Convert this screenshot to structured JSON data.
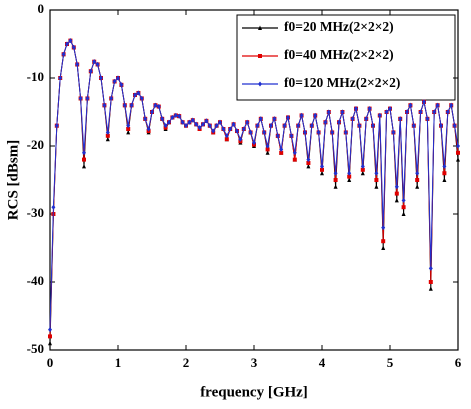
{
  "chart_data": {
    "type": "line",
    "xlabel": "frequency [GHz]",
    "ylabel": "RCS [dBsm]",
    "xlim": [
      0,
      6
    ],
    "ylim": [
      -50,
      0
    ],
    "xticks": [
      0,
      1,
      2,
      3,
      4,
      5,
      6
    ],
    "yticks": [
      -50,
      -40,
      -30,
      -20,
      -10,
      0
    ],
    "legend": "upper right",
    "x": [
      0,
      0.05,
      0.1,
      0.15,
      0.2,
      0.25,
      0.3,
      0.35,
      0.4,
      0.45,
      0.5,
      0.55,
      0.6,
      0.65,
      0.7,
      0.75,
      0.8,
      0.85,
      0.9,
      0.95,
      1.0,
      1.05,
      1.1,
      1.15,
      1.2,
      1.25,
      1.3,
      1.35,
      1.4,
      1.45,
      1.5,
      1.55,
      1.6,
      1.65,
      1.7,
      1.75,
      1.8,
      1.85,
      1.9,
      1.95,
      2.0,
      2.05,
      2.1,
      2.15,
      2.2,
      2.25,
      2.3,
      2.35,
      2.4,
      2.45,
      2.5,
      2.55,
      2.6,
      2.65,
      2.7,
      2.75,
      2.8,
      2.85,
      2.9,
      2.95,
      3.0,
      3.05,
      3.1,
      3.15,
      3.2,
      3.25,
      3.3,
      3.35,
      3.4,
      3.45,
      3.5,
      3.55,
      3.6,
      3.65,
      3.7,
      3.75,
      3.8,
      3.85,
      3.9,
      3.95,
      4.0,
      4.05,
      4.1,
      4.15,
      4.2,
      4.25,
      4.3,
      4.35,
      4.4,
      4.45,
      4.5,
      4.55,
      4.6,
      4.65,
      4.7,
      4.75,
      4.8,
      4.85,
      4.9,
      4.95,
      5.0,
      5.05,
      5.1,
      5.15,
      5.2,
      5.25,
      5.3,
      5.35,
      5.4,
      5.45,
      5.5,
      5.55,
      5.6,
      5.65,
      5.7,
      5.75,
      5.8,
      5.85,
      5.9,
      5.95,
      6.0
    ],
    "series": [
      {
        "name": "f0=20 MHz(2×2×2)",
        "color": "#000000",
        "marker": "triangle",
        "values": [
          -49,
          -30,
          -17,
          -10,
          -6.5,
          -5,
          -4.5,
          -5.5,
          -8,
          -13,
          -23,
          -13,
          -9,
          -7.6,
          -8,
          -10,
          -14,
          -19,
          -13,
          -10.5,
          -10,
          -11,
          -14,
          -18,
          -14,
          -12.5,
          -12.2,
          -13,
          -16,
          -18,
          -15,
          -14,
          -14.2,
          -16,
          -17.5,
          -16.5,
          -15.8,
          -15.5,
          -15.6,
          -16.5,
          -17,
          -16.5,
          -16.2,
          -16.8,
          -17.5,
          -16.8,
          -16.3,
          -17,
          -18,
          -17,
          -16.5,
          -17.5,
          -19,
          -17.5,
          -16.8,
          -17.8,
          -19.5,
          -17.5,
          -16.5,
          -18,
          -20,
          -17,
          -16,
          -18,
          -21,
          -17,
          -16,
          -18.5,
          -21,
          -17,
          -15.8,
          -18.5,
          -22,
          -17,
          -15.5,
          -18,
          -23,
          -17,
          -15.5,
          -18,
          -24,
          -16.5,
          -15,
          -18,
          -26,
          -16.5,
          -15,
          -18,
          -25,
          -16,
          -14.5,
          -17,
          -24,
          -16,
          -14.5,
          -17,
          -26,
          -15.5,
          -35,
          -15,
          -14.5,
          -18,
          -28,
          -16,
          -30,
          -15,
          -14,
          -17,
          -26,
          -15,
          -13.5,
          -16,
          -41,
          -15,
          -14,
          -17,
          -25,
          -15,
          -14,
          -17,
          -22
        ]
      },
      {
        "name": "f0=40 MHz(2×2×2)",
        "color": "#e00000",
        "marker": "square",
        "values": [
          -48,
          -30,
          -17,
          -10,
          -6.5,
          -5,
          -4.5,
          -5.5,
          -8,
          -13,
          -22,
          -13,
          -9,
          -7.6,
          -8,
          -10,
          -14,
          -18.5,
          -13,
          -10.5,
          -10,
          -11,
          -14,
          -17.5,
          -14,
          -12.5,
          -12.2,
          -13,
          -16,
          -17.8,
          -15,
          -14,
          -14.2,
          -16,
          -17.3,
          -16.5,
          -15.8,
          -15.5,
          -15.6,
          -16.5,
          -17,
          -16.5,
          -16.2,
          -16.8,
          -17.5,
          -16.8,
          -16.3,
          -17,
          -18,
          -17,
          -16.5,
          -17.5,
          -19,
          -17.5,
          -16.8,
          -17.8,
          -19.3,
          -17.5,
          -16.5,
          -18,
          -19.8,
          -17,
          -16,
          -18,
          -20.5,
          -17,
          -16,
          -18.5,
          -21,
          -17,
          -15.8,
          -18.5,
          -22,
          -17,
          -15.5,
          -18,
          -22.5,
          -17,
          -15.5,
          -18,
          -23.5,
          -16.5,
          -15,
          -18,
          -25,
          -16.5,
          -15,
          -18,
          -24.5,
          -16,
          -14.5,
          -17,
          -23.5,
          -16,
          -14.5,
          -17,
          -25,
          -15.5,
          -34,
          -15,
          -14.5,
          -18,
          -27,
          -16,
          -29,
          -15,
          -14,
          -17,
          -25,
          -15,
          -13.5,
          -16,
          -40,
          -15,
          -14,
          -17,
          -24,
          -15,
          -14,
          -17,
          -21
        ]
      },
      {
        "name": "f0=120 MHz(2×2×2)",
        "color": "#2030d0",
        "marker": "diamond",
        "values": [
          -47,
          -29,
          -17,
          -10,
          -6.5,
          -5,
          -4.5,
          -5.5,
          -8,
          -13,
          -21,
          -13,
          -9,
          -7.6,
          -8,
          -10,
          -14,
          -18,
          -13,
          -10.5,
          -10,
          -11,
          -14,
          -17,
          -14,
          -12.5,
          -12.2,
          -13,
          -16,
          -17.5,
          -15,
          -14,
          -14.2,
          -16,
          -17,
          -16.5,
          -15.8,
          -15.5,
          -15.6,
          -16.5,
          -17,
          -16.5,
          -16.2,
          -16.8,
          -17.3,
          -16.8,
          -16.3,
          -17,
          -17.8,
          -17,
          -16.5,
          -17.5,
          -18.5,
          -17.5,
          -16.8,
          -17.8,
          -19,
          -17.5,
          -16.5,
          -18,
          -19.5,
          -17,
          -16,
          -18,
          -20,
          -17,
          -16,
          -18.5,
          -20.5,
          -17,
          -15.8,
          -18.5,
          -21,
          -17,
          -15.5,
          -18,
          -22,
          -17,
          -15.5,
          -18,
          -23,
          -16.5,
          -15,
          -18,
          -24,
          -16.5,
          -15,
          -18,
          -24,
          -16,
          -14.5,
          -17,
          -23,
          -16,
          -14.5,
          -17,
          -24,
          -15.5,
          -32,
          -15,
          -14.5,
          -18,
          -26,
          -16,
          -28,
          -15,
          -14,
          -17,
          -24,
          -15,
          -13.5,
          -16,
          -38,
          -15,
          -14,
          -17,
          -23,
          -15,
          -14,
          -17,
          -20
        ]
      }
    ]
  }
}
